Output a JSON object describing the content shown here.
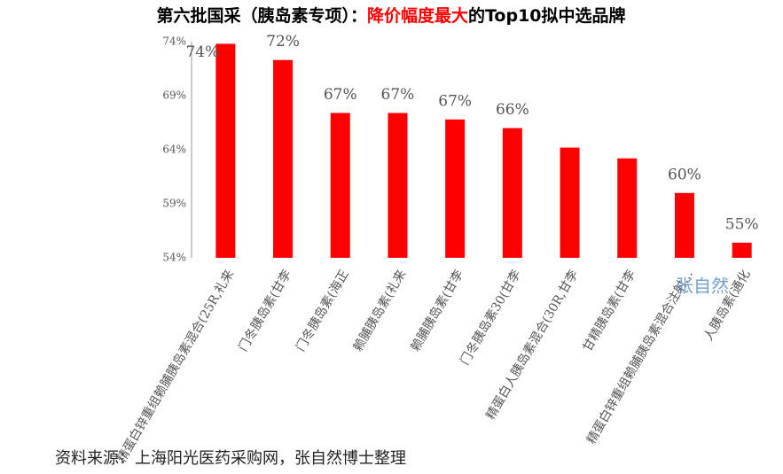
{
  "chart_data": {
    "type": "bar",
    "title": [
      "第六批国采（胰岛素专项）：",
      "降价幅度最大",
      "的Top10拟中选品牌"
    ],
    "categories": [
      "精蛋白锌重组赖脯胰岛素混合(25R,礼来",
      "门冬胰岛素(甘李",
      "门冬胰岛素(海正",
      "赖脯胰岛素(礼来",
      "赖脯胰岛素(甘李",
      "门冬胰岛素30(甘李",
      "精蛋白人胰岛素混合(30R,甘李",
      "甘精胰岛素(甘李",
      "精蛋白锌重组赖脯胰岛素混合注射…",
      "人胰岛素(通化"
    ],
    "values": [
      73.8,
      72.3,
      67.4,
      67.4,
      66.8,
      66.0,
      64.2,
      63.2,
      60.0,
      55.4
    ],
    "value_labels": [
      "74%",
      "72%",
      "67%",
      "67%",
      "67%",
      "66%",
      null,
      null,
      "60%",
      "55%"
    ],
    "color": "#ff0000",
    "ylim": [
      54,
      74
    ],
    "yticks": [
      {
        "value": 54,
        "label": "54%"
      },
      {
        "value": 59,
        "label": "59%"
      },
      {
        "value": 64,
        "label": "64%"
      },
      {
        "value": 69,
        "label": "69%"
      },
      {
        "value": 74,
        "label": "74%"
      }
    ],
    "grid": false,
    "watermark": "张自然",
    "source": "资料来源：上海阳光医药采购网，张自然博士整理"
  }
}
